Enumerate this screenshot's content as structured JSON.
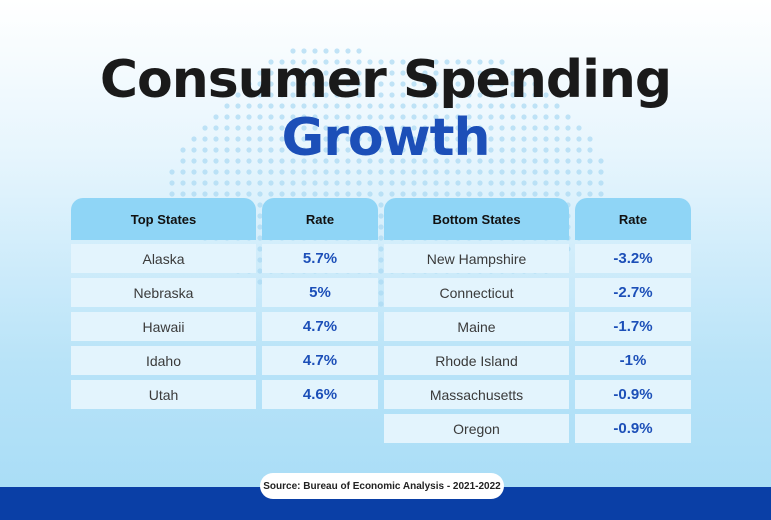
{
  "chart_data": {
    "type": "table",
    "title_line1": "Consumer Spending",
    "title_line2": "Growth",
    "top": {
      "headers": [
        "Top States",
        "Rate"
      ],
      "rows": [
        {
          "state": "Alaska",
          "rate": "5.7%"
        },
        {
          "state": "Nebraska",
          "rate": "5%"
        },
        {
          "state": "Hawaii",
          "rate": "4.7%"
        },
        {
          "state": "Idaho",
          "rate": "4.7%"
        },
        {
          "state": "Utah",
          "rate": "4.6%"
        }
      ]
    },
    "bottom": {
      "headers": [
        "Bottom States",
        "Rate"
      ],
      "rows": [
        {
          "state": "New Hampshire",
          "rate": "-3.2%"
        },
        {
          "state": "Connecticut",
          "rate": "-2.7%"
        },
        {
          "state": "Maine",
          "rate": "-1.7%"
        },
        {
          "state": "Rhode Island",
          "rate": "-1%"
        },
        {
          "state": "Massachusetts",
          "rate": "-0.9%"
        },
        {
          "state": "Oregon",
          "rate": "-0.9%"
        }
      ]
    },
    "source": "Source: Bureau of Economic Analysis - 2021-2022"
  },
  "colors": {
    "accent": "#1c4fb8",
    "header_bg": "#8fd5f6",
    "cell_bg": "#e3f4fd",
    "footer": "#0a3fa6"
  }
}
